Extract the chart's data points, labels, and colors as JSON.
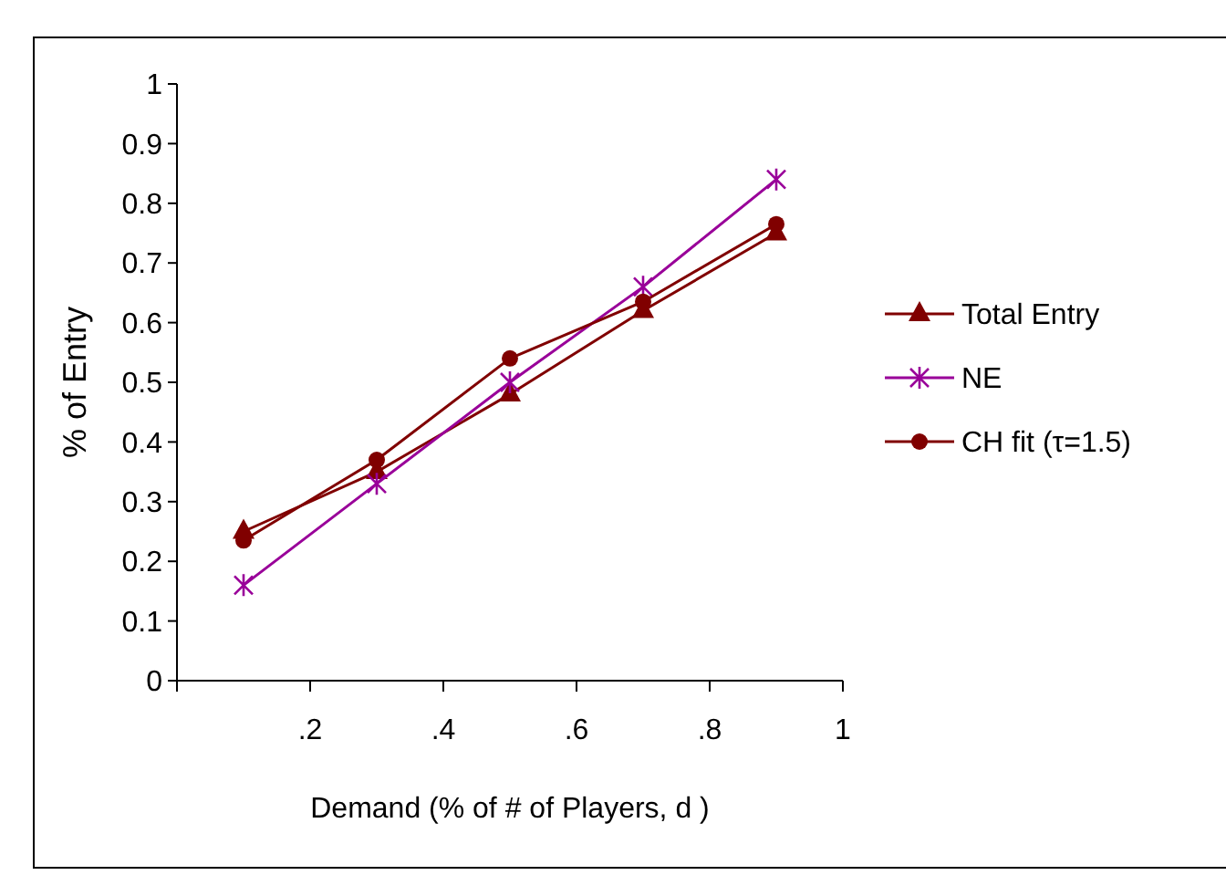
{
  "chart_data": {
    "type": "line",
    "xlabel": "Demand (% of # of Players, d )",
    "ylabel": "% of Entry",
    "x": [
      0.1,
      0.3,
      0.5,
      0.7,
      0.9
    ],
    "series": [
      {
        "name": "Total Entry",
        "color": "#800000",
        "marker": "triangle",
        "values": [
          0.25,
          0.35,
          0.48,
          0.62,
          0.75
        ]
      },
      {
        "name": "NE",
        "color": "#990099",
        "marker": "cross",
        "values": [
          0.16,
          0.33,
          0.5,
          0.66,
          0.84
        ]
      },
      {
        "name": "CH fit (τ=1.5)",
        "color": "#800000",
        "marker": "circle",
        "values": [
          0.235,
          0.37,
          0.54,
          0.635,
          0.765
        ]
      }
    ],
    "xlim": [
      0,
      1
    ],
    "xticks": [
      {
        "value": 0,
        "label": null
      },
      {
        "value": 0.2,
        "label": ".2"
      },
      {
        "value": 0.4,
        "label": ".4"
      },
      {
        "value": 0.6,
        "label": ".6"
      },
      {
        "value": 0.8,
        "label": ".8"
      },
      1
    ],
    "ylim": [
      0,
      1
    ],
    "yticks": [
      0,
      0.1,
      0.2,
      0.3,
      0.4,
      0.5,
      0.6,
      0.7,
      0.8,
      0.9,
      1
    ],
    "grid": false,
    "legend": "right",
    "line_style": "solid"
  }
}
